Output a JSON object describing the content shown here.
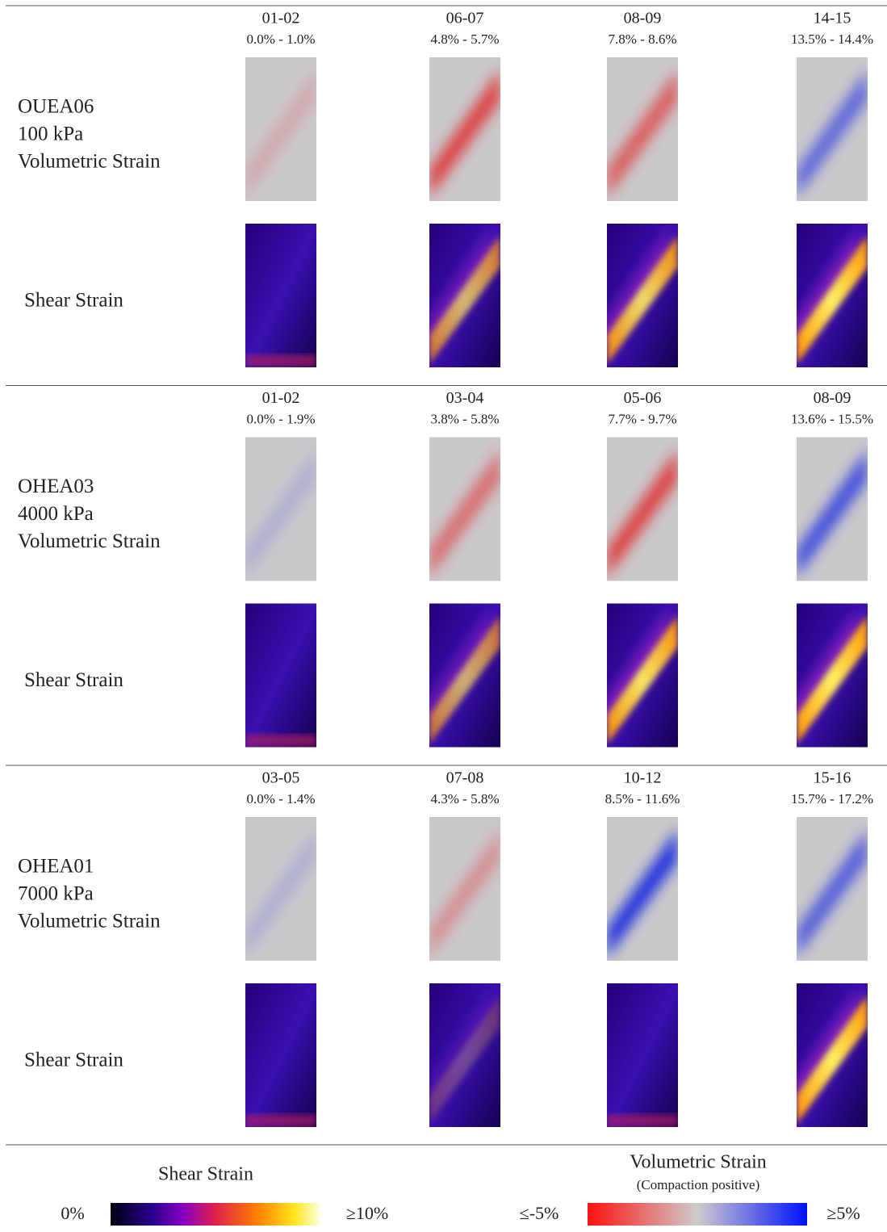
{
  "blocks": [
    {
      "specimen": "OUEA06",
      "pressure": "100 kPa",
      "volumetric_label": "Volumetric Strain",
      "shear_label": "Shear Strain",
      "columns": [
        {
          "increment": "01-02",
          "range": "0.0% - 1.0%"
        },
        {
          "increment": "06-07",
          "range": "4.8% - 5.7%"
        },
        {
          "increment": "08-09",
          "range": "7.8% - 8.6%"
        },
        {
          "increment": "14-15",
          "range": "13.5% - 14.4%"
        }
      ]
    },
    {
      "specimen": "OHEA03",
      "pressure": "4000 kPa",
      "volumetric_label": "Volumetric Strain",
      "shear_label": "Shear Strain",
      "columns": [
        {
          "increment": "01-02",
          "range": "0.0% - 1.9%"
        },
        {
          "increment": "03-04",
          "range": "3.8% - 5.8%"
        },
        {
          "increment": "05-06",
          "range": "7.7% - 9.7%"
        },
        {
          "increment": "08-09",
          "range": "13.6% - 15.5%"
        }
      ]
    },
    {
      "specimen": "OHEA01",
      "pressure": "7000 kPa",
      "volumetric_label": "Volumetric Strain",
      "shear_label": "Shear Strain",
      "columns": [
        {
          "increment": "03-05",
          "range": "0.0% - 1.4%"
        },
        {
          "increment": "07-08",
          "range": "4.3% - 5.8%"
        },
        {
          "increment": "10-12",
          "range": "8.5% - 11.6%"
        },
        {
          "increment": "15-16",
          "range": "15.7% - 17.2%"
        }
      ]
    }
  ],
  "legend": {
    "shear": {
      "title": "Shear Strain",
      "min": "0%",
      "max": "≥10%"
    },
    "volumetric": {
      "title": "Volumetric Strain",
      "subtitle": "(Compaction positive)",
      "min": "≤-5%",
      "max": "≥5%"
    }
  }
}
